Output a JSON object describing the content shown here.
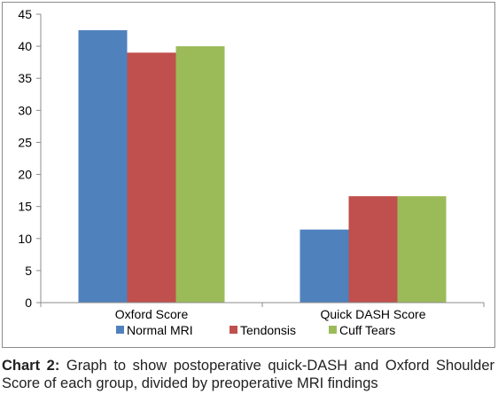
{
  "chart_data": {
    "type": "bar",
    "categories": [
      "Oxford Score",
      "Quick DASH Score"
    ],
    "series": [
      {
        "name": "Normal MRI",
        "values": [
          42.5,
          11.4
        ],
        "color": "#4f81bd"
      },
      {
        "name": "Tendonsis",
        "values": [
          39.0,
          16.6
        ],
        "color": "#c0504d"
      },
      {
        "name": "Cuff Tears",
        "values": [
          40.0,
          16.6
        ],
        "color": "#9bbb59"
      }
    ],
    "ylim": [
      0,
      45
    ],
    "yticks": [
      0,
      5,
      10,
      15,
      20,
      25,
      30,
      35,
      40,
      45
    ],
    "grid": false,
    "legend_position": "bottom"
  },
  "caption": {
    "label": "Chart 2:",
    "text": "Graph to show postoperative quick-DASH and Oxford Shoulder Score of each group, divided by preoperative MRI findings"
  }
}
